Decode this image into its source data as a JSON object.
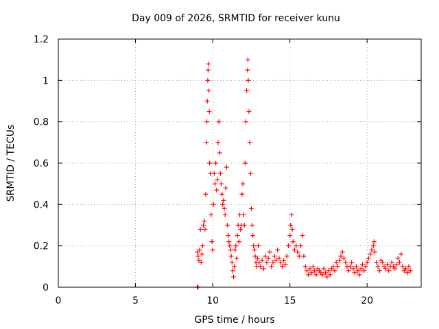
{
  "chart_data": {
    "type": "scatter",
    "title": "Day 009 of 2026, SRMTID for receiver kunu",
    "xlabel": "GPS time / hours",
    "ylabel": "SRMTID / TECUs",
    "xlim": [
      0,
      23.5
    ],
    "ylim": [
      0,
      1.2
    ],
    "x_ticks": [
      0,
      5,
      10,
      15,
      20
    ],
    "y_ticks": [
      0,
      0.2,
      0.4,
      0.6,
      0.8,
      1,
      1.2
    ],
    "x_tick_labels": [
      "0",
      "5",
      "10",
      "15",
      "20"
    ],
    "y_tick_labels": [
      "0",
      "0.2",
      "0.4",
      "0.6",
      "0.8",
      "1",
      "1.2"
    ],
    "grid": true,
    "marker": "plus",
    "color": "#ff0000",
    "series": [
      {
        "name": "SRMTID",
        "points": [
          [
            9.0,
            0.0
          ],
          [
            9.05,
            0.0
          ],
          [
            9.0,
            0.17
          ],
          [
            9.05,
            0.15
          ],
          [
            9.1,
            0.13
          ],
          [
            9.15,
            0.18
          ],
          [
            9.2,
            0.28
          ],
          [
            9.25,
            0.12
          ],
          [
            9.3,
            0.16
          ],
          [
            9.35,
            0.2
          ],
          [
            9.4,
            0.3
          ],
          [
            9.45,
            0.32
          ],
          [
            9.5,
            0.28
          ],
          [
            9.55,
            0.45
          ],
          [
            9.6,
            0.7
          ],
          [
            9.62,
            0.8
          ],
          [
            9.65,
            0.9
          ],
          [
            9.68,
            1.0
          ],
          [
            9.7,
            1.05
          ],
          [
            9.72,
            1.08
          ],
          [
            9.75,
            0.95
          ],
          [
            9.78,
            0.85
          ],
          [
            9.8,
            0.6
          ],
          [
            9.85,
            0.55
          ],
          [
            9.9,
            0.35
          ],
          [
            9.95,
            0.22
          ],
          [
            10.0,
            0.18
          ],
          [
            10.05,
            0.4
          ],
          [
            10.1,
            0.55
          ],
          [
            10.15,
            0.5
          ],
          [
            10.2,
            0.6
          ],
          [
            10.25,
            0.47
          ],
          [
            10.3,
            0.52
          ],
          [
            10.35,
            0.7
          ],
          [
            10.4,
            0.8
          ],
          [
            10.45,
            0.65
          ],
          [
            10.5,
            0.55
          ],
          [
            10.55,
            0.5
          ],
          [
            10.6,
            0.45
          ],
          [
            10.65,
            0.4
          ],
          [
            10.7,
            0.42
          ],
          [
            10.75,
            0.38
          ],
          [
            10.8,
            0.35
          ],
          [
            10.85,
            0.48
          ],
          [
            10.9,
            0.58
          ],
          [
            10.95,
            0.3
          ],
          [
            11.0,
            0.25
          ],
          [
            11.05,
            0.22
          ],
          [
            11.1,
            0.2
          ],
          [
            11.15,
            0.18
          ],
          [
            11.2,
            0.15
          ],
          [
            11.25,
            0.12
          ],
          [
            11.3,
            0.08
          ],
          [
            11.35,
            0.05
          ],
          [
            11.4,
            0.1
          ],
          [
            11.45,
            0.18
          ],
          [
            11.5,
            0.2
          ],
          [
            11.55,
            0.14
          ],
          [
            11.6,
            0.25
          ],
          [
            11.65,
            0.3
          ],
          [
            11.7,
            0.22
          ],
          [
            11.75,
            0.35
          ],
          [
            11.8,
            0.28
          ],
          [
            11.85,
            0.3
          ],
          [
            11.9,
            0.45
          ],
          [
            11.95,
            0.5
          ],
          [
            12.0,
            0.35
          ],
          [
            12.05,
            0.3
          ],
          [
            12.1,
            0.6
          ],
          [
            12.15,
            0.8
          ],
          [
            12.2,
            0.95
          ],
          [
            12.25,
            1.05
          ],
          [
            12.28,
            1.1
          ],
          [
            12.3,
            1.0
          ],
          [
            12.35,
            0.85
          ],
          [
            12.4,
            0.7
          ],
          [
            12.45,
            0.55
          ],
          [
            12.5,
            0.38
          ],
          [
            12.55,
            0.3
          ],
          [
            12.6,
            0.25
          ],
          [
            12.65,
            0.2
          ],
          [
            12.7,
            0.18
          ],
          [
            12.75,
            0.15
          ],
          [
            12.8,
            0.12
          ],
          [
            12.85,
            0.1
          ],
          [
            12.9,
            0.14
          ],
          [
            12.95,
            0.2
          ],
          [
            13.0,
            0.12
          ],
          [
            13.1,
            0.1
          ],
          [
            13.2,
            0.13
          ],
          [
            13.3,
            0.09
          ],
          [
            13.4,
            0.15
          ],
          [
            13.5,
            0.12
          ],
          [
            13.6,
            0.14
          ],
          [
            13.7,
            0.17
          ],
          [
            13.8,
            0.1
          ],
          [
            13.9,
            0.12
          ],
          [
            14.0,
            0.15
          ],
          [
            14.1,
            0.13
          ],
          [
            14.2,
            0.18
          ],
          [
            14.3,
            0.14
          ],
          [
            14.4,
            0.12
          ],
          [
            14.5,
            0.1
          ],
          [
            14.6,
            0.13
          ],
          [
            14.7,
            0.11
          ],
          [
            14.8,
            0.15
          ],
          [
            14.9,
            0.2
          ],
          [
            15.0,
            0.25
          ],
          [
            15.05,
            0.3
          ],
          [
            15.1,
            0.35
          ],
          [
            15.15,
            0.28
          ],
          [
            15.2,
            0.22
          ],
          [
            15.3,
            0.18
          ],
          [
            15.4,
            0.2
          ],
          [
            15.5,
            0.17
          ],
          [
            15.6,
            0.15
          ],
          [
            15.7,
            0.2
          ],
          [
            15.8,
            0.25
          ],
          [
            15.9,
            0.15
          ],
          [
            16.0,
            0.1
          ],
          [
            16.1,
            0.08
          ],
          [
            16.2,
            0.06
          ],
          [
            16.3,
            0.09
          ],
          [
            16.4,
            0.07
          ],
          [
            16.5,
            0.1
          ],
          [
            16.6,
            0.08
          ],
          [
            16.7,
            0.06
          ],
          [
            16.8,
            0.09
          ],
          [
            16.9,
            0.08
          ],
          [
            17.0,
            0.07
          ],
          [
            17.1,
            0.06
          ],
          [
            17.2,
            0.09
          ],
          [
            17.3,
            0.07
          ],
          [
            17.4,
            0.05
          ],
          [
            17.5,
            0.08
          ],
          [
            17.6,
            0.06
          ],
          [
            17.7,
            0.09
          ],
          [
            17.8,
            0.1
          ],
          [
            17.9,
            0.08
          ],
          [
            18.0,
            0.12
          ],
          [
            18.1,
            0.1
          ],
          [
            18.2,
            0.13
          ],
          [
            18.3,
            0.15
          ],
          [
            18.4,
            0.17
          ],
          [
            18.5,
            0.14
          ],
          [
            18.6,
            0.12
          ],
          [
            18.7,
            0.1
          ],
          [
            18.8,
            0.08
          ],
          [
            18.9,
            0.1
          ],
          [
            19.0,
            0.12
          ],
          [
            19.1,
            0.09
          ],
          [
            19.2,
            0.07
          ],
          [
            19.3,
            0.1
          ],
          [
            19.4,
            0.08
          ],
          [
            19.5,
            0.06
          ],
          [
            19.6,
            0.09
          ],
          [
            19.7,
            0.11
          ],
          [
            19.8,
            0.08
          ],
          [
            19.9,
            0.1
          ],
          [
            20.0,
            0.12
          ],
          [
            20.1,
            0.14
          ],
          [
            20.2,
            0.16
          ],
          [
            20.3,
            0.18
          ],
          [
            20.4,
            0.2
          ],
          [
            20.45,
            0.22
          ],
          [
            20.5,
            0.17
          ],
          [
            20.6,
            0.12
          ],
          [
            20.7,
            0.1
          ],
          [
            20.8,
            0.08
          ],
          [
            20.9,
            0.13
          ],
          [
            21.0,
            0.12
          ],
          [
            21.1,
            0.1
          ],
          [
            21.2,
            0.09
          ],
          [
            21.3,
            0.11
          ],
          [
            21.4,
            0.08
          ],
          [
            21.5,
            0.1
          ],
          [
            21.6,
            0.12
          ],
          [
            21.7,
            0.1
          ],
          [
            21.8,
            0.09
          ],
          [
            21.9,
            0.11
          ],
          [
            22.0,
            0.14
          ],
          [
            22.1,
            0.12
          ],
          [
            22.2,
            0.16
          ],
          [
            22.3,
            0.1
          ],
          [
            22.4,
            0.08
          ],
          [
            22.5,
            0.09
          ],
          [
            22.6,
            0.07
          ],
          [
            22.7,
            0.1
          ],
          [
            22.8,
            0.08
          ]
        ]
      }
    ]
  }
}
